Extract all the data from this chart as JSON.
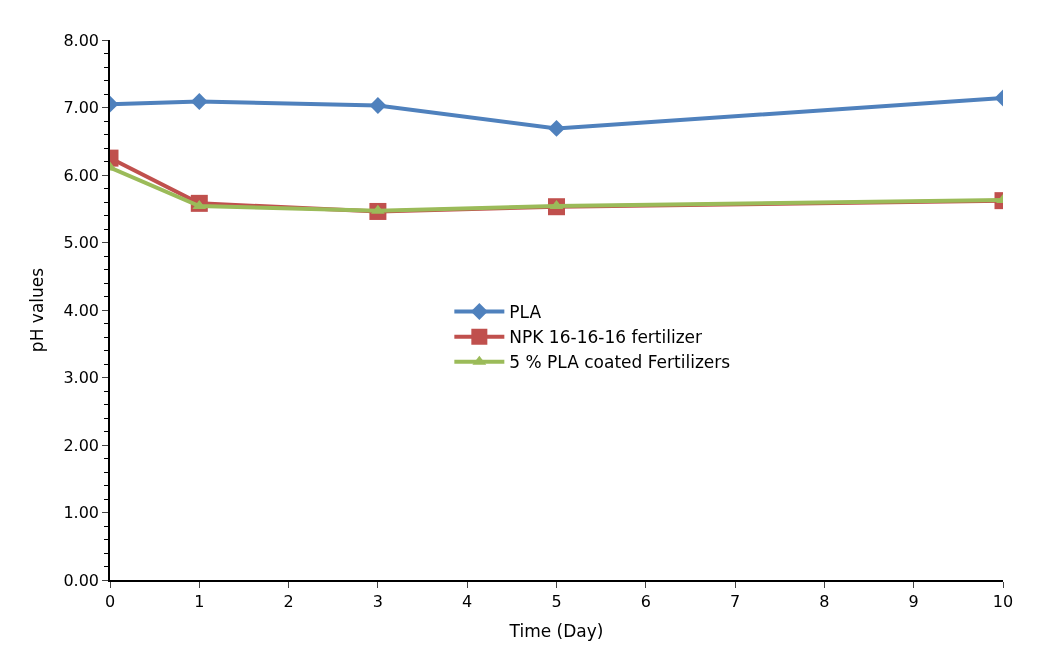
{
  "chart_data": {
    "type": "line",
    "xlabel": "Time (Day)",
    "ylabel": "pH values",
    "x": [
      0,
      1,
      3,
      5,
      10
    ],
    "series": [
      {
        "name": "PLA",
        "color": "#4f81bd",
        "marker": "diamond",
        "values": [
          7.05,
          7.09,
          7.03,
          6.69,
          7.14
        ]
      },
      {
        "name": "NPK 16-16-16 fertilizer",
        "color": "#c0504d",
        "marker": "square",
        "values": [
          6.25,
          5.58,
          5.46,
          5.53,
          5.62
        ]
      },
      {
        "name": "5 % PLA coated Fertilizers",
        "color": "#9bbb59",
        "marker": "triangle",
        "values": [
          6.11,
          5.54,
          5.47,
          5.54,
          5.63
        ]
      }
    ],
    "xlim": [
      0,
      10
    ],
    "xticks": [
      0,
      1,
      2,
      3,
      4,
      5,
      6,
      7,
      8,
      9,
      10
    ],
    "ylim": [
      0,
      8
    ],
    "yticks": [
      {
        "value": 0,
        "label": "0.00"
      },
      {
        "value": 1,
        "label": "1.00"
      },
      {
        "value": 2,
        "label": "2.00"
      },
      {
        "value": 3,
        "label": "3.00"
      },
      {
        "value": 4,
        "label": "4.00"
      },
      {
        "value": 5,
        "label": "5.00"
      },
      {
        "value": 6,
        "label": "6.00"
      },
      {
        "value": 7,
        "label": "7.00"
      },
      {
        "value": 8,
        "label": "8.00"
      }
    ],
    "legend": "center",
    "line_style": "solid"
  }
}
